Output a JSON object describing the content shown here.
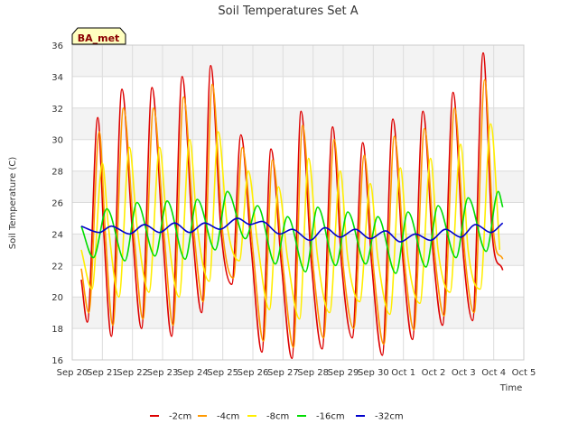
{
  "chart_data": {
    "type": "line",
    "title": "Soil Temperatures Set A",
    "xlabel": "Time",
    "ylabel": "Soil Temperature (C)",
    "badge": "BA_met",
    "ylim": [
      16,
      36
    ],
    "yticks": [
      16,
      18,
      20,
      22,
      24,
      26,
      28,
      30,
      32,
      34,
      36
    ],
    "xlim": [
      0,
      15
    ],
    "xticks": [
      0,
      1,
      2,
      3,
      4,
      5,
      6,
      7,
      8,
      9,
      10,
      11,
      12,
      13,
      14,
      15
    ],
    "xtick_labels": [
      "Sep 20",
      "Sep 21",
      "Sep 22",
      "Sep 23",
      "Sep 24",
      "Sep 25",
      "Sep 26",
      "Sep 27",
      "Sep 28",
      "Sep 29",
      "Sep 30",
      "Oct 1",
      "Oct 2",
      "Oct 3",
      "Oct 4",
      "Oct 5"
    ],
    "grid": true,
    "legend_position": "bottom",
    "series": [
      {
        "name": "-2cm",
        "color": "#dd0000",
        "x": [
          0.3,
          0.5,
          0.85,
          1.05,
          1.3,
          1.65,
          2.0,
          2.3,
          2.65,
          3.0,
          3.3,
          3.65,
          4.0,
          4.3,
          4.6,
          4.95,
          5.3,
          5.6,
          5.95,
          6.3,
          6.6,
          6.95,
          7.3,
          7.6,
          7.95,
          8.3,
          8.65,
          8.95,
          9.3,
          9.65,
          9.95,
          10.3,
          10.65,
          11.0,
          11.3,
          11.65,
          12.0,
          12.3,
          12.65,
          13.0,
          13.3,
          13.65,
          13.95,
          14.3
        ],
        "y": [
          21.1,
          18.4,
          31.4,
          24.0,
          17.5,
          33.2,
          24.0,
          18.0,
          33.3,
          24.0,
          17.5,
          34.0,
          24.0,
          19.0,
          34.7,
          24.0,
          20.8,
          30.3,
          23.0,
          16.5,
          29.4,
          22.0,
          16.1,
          31.8,
          22.0,
          16.7,
          30.8,
          22.0,
          17.4,
          29.8,
          22.0,
          16.3,
          31.3,
          22.0,
          17.3,
          31.8,
          22.5,
          18.2,
          33.0,
          22.5,
          18.5,
          35.5,
          24.0,
          21.7
        ]
      },
      {
        "name": "-4cm",
        "color": "#ff9900",
        "x": [
          0.3,
          0.55,
          0.9,
          1.1,
          1.35,
          1.7,
          2.05,
          2.35,
          2.7,
          3.05,
          3.35,
          3.7,
          4.05,
          4.35,
          4.65,
          5.0,
          5.35,
          5.65,
          6.0,
          6.35,
          6.65,
          7.0,
          7.35,
          7.65,
          8.0,
          8.35,
          8.7,
          9.0,
          9.35,
          9.7,
          10.0,
          10.35,
          10.7,
          11.05,
          11.35,
          11.7,
          12.05,
          12.35,
          12.7,
          13.05,
          13.35,
          13.7,
          14.0,
          14.3
        ],
        "y": [
          21.8,
          19.0,
          30.5,
          24.0,
          18.2,
          32.0,
          24.0,
          18.6,
          32.0,
          24.0,
          18.2,
          32.7,
          24.0,
          19.7,
          33.5,
          24.0,
          21.2,
          29.5,
          23.0,
          17.2,
          28.7,
          22.0,
          16.8,
          30.9,
          22.0,
          17.4,
          30.0,
          22.0,
          18.0,
          29.0,
          22.0,
          17.0,
          30.2,
          22.0,
          17.9,
          30.7,
          22.5,
          18.8,
          32.0,
          22.5,
          19.0,
          33.8,
          24.0,
          22.4
        ]
      },
      {
        "name": "-8cm",
        "color": "#ffee00",
        "x": [
          0.3,
          0.65,
          1.0,
          1.2,
          1.55,
          1.9,
          2.15,
          2.55,
          2.9,
          3.15,
          3.55,
          3.9,
          4.15,
          4.55,
          4.85,
          5.15,
          5.55,
          5.85,
          6.15,
          6.55,
          6.85,
          7.15,
          7.55,
          7.85,
          8.15,
          8.55,
          8.9,
          9.15,
          9.55,
          9.9,
          10.15,
          10.55,
          10.9,
          11.15,
          11.55,
          11.9,
          12.15,
          12.55,
          12.9,
          13.15,
          13.55,
          13.9,
          14.2
        ],
        "y": [
          23.0,
          20.5,
          28.5,
          24.5,
          20.0,
          29.5,
          24.5,
          20.3,
          29.5,
          24.5,
          20.0,
          30.0,
          24.5,
          21.0,
          30.5,
          24.5,
          22.3,
          28.0,
          23.5,
          19.2,
          27.0,
          22.5,
          18.6,
          28.8,
          22.5,
          19.0,
          28.0,
          22.5,
          19.7,
          27.2,
          22.5,
          18.9,
          28.2,
          22.5,
          19.6,
          28.8,
          23.0,
          20.3,
          29.7,
          23.0,
          20.5,
          31.0,
          23.0
        ]
      },
      {
        "name": "-16cm",
        "color": "#00dd00",
        "x": [
          0.3,
          0.7,
          1.15,
          1.75,
          2.15,
          2.75,
          3.15,
          3.75,
          4.15,
          4.75,
          5.15,
          5.75,
          6.15,
          6.75,
          7.15,
          7.75,
          8.15,
          8.75,
          9.15,
          9.75,
          10.15,
          10.75,
          11.15,
          11.75,
          12.15,
          12.75,
          13.15,
          13.75,
          14.15,
          14.3
        ],
        "y": [
          24.5,
          22.5,
          25.6,
          22.3,
          26.0,
          22.6,
          26.1,
          22.4,
          26.2,
          23.0,
          26.7,
          23.7,
          25.8,
          22.1,
          25.1,
          21.6,
          25.7,
          22.0,
          25.4,
          22.1,
          25.1,
          21.5,
          25.4,
          21.9,
          25.8,
          22.5,
          26.3,
          22.9,
          26.7,
          25.7
        ]
      },
      {
        "name": "-32cm",
        "color": "#0000cc",
        "x": [
          0.3,
          0.9,
          1.3,
          1.9,
          2.4,
          2.9,
          3.4,
          3.9,
          4.4,
          4.9,
          5.5,
          5.9,
          6.3,
          6.9,
          7.3,
          7.9,
          8.4,
          8.9,
          9.4,
          9.9,
          10.4,
          10.9,
          11.4,
          11.9,
          12.4,
          12.9,
          13.4,
          13.9,
          14.3
        ],
        "y": [
          24.5,
          24.1,
          24.5,
          24.0,
          24.6,
          24.1,
          24.7,
          24.1,
          24.7,
          24.3,
          25.0,
          24.6,
          24.8,
          24.0,
          24.3,
          23.6,
          24.4,
          23.8,
          24.3,
          23.7,
          24.2,
          23.5,
          24.0,
          23.6,
          24.3,
          23.8,
          24.6,
          24.1,
          24.7
        ]
      }
    ]
  }
}
